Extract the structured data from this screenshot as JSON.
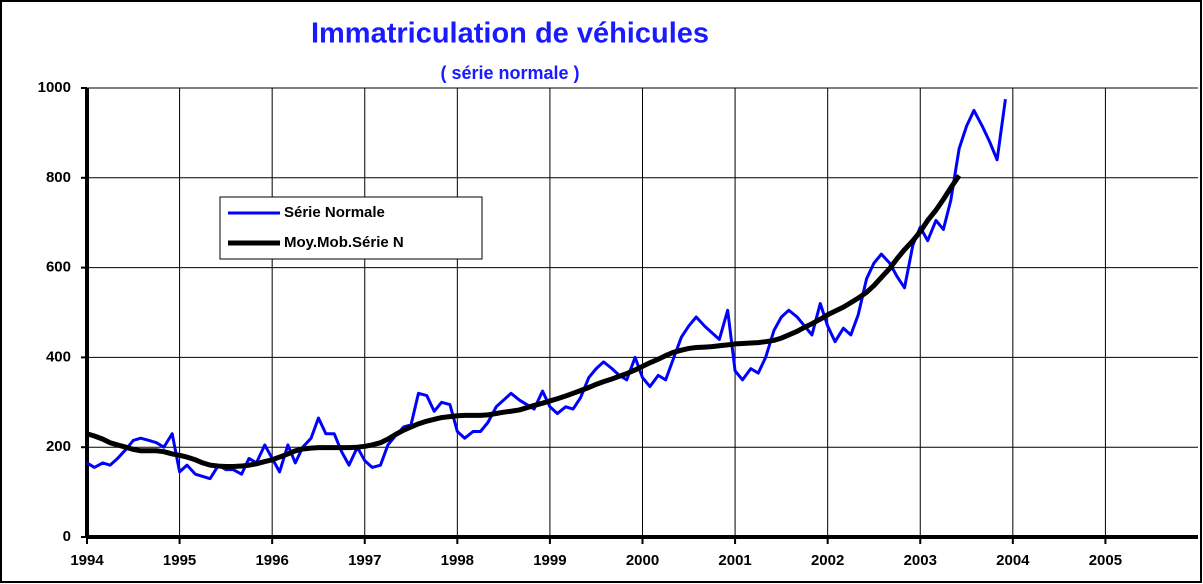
{
  "chart_data": {
    "type": "line",
    "title": "Immatriculation de véhicules",
    "subtitle": "( série normale )",
    "x": [
      1994.0,
      1994.08,
      1994.17,
      1994.25,
      1994.33,
      1994.42,
      1994.5,
      1994.58,
      1994.67,
      1994.75,
      1994.83,
      1994.92,
      1995.0,
      1995.08,
      1995.17,
      1995.25,
      1995.33,
      1995.42,
      1995.5,
      1995.58,
      1995.67,
      1995.75,
      1995.83,
      1995.92,
      1996.0,
      1996.08,
      1996.17,
      1996.25,
      1996.33,
      1996.42,
      1996.5,
      1996.58,
      1996.67,
      1996.75,
      1996.83,
      1996.92,
      1997.0,
      1997.08,
      1997.17,
      1997.25,
      1997.33,
      1997.42,
      1997.5,
      1997.58,
      1997.67,
      1997.75,
      1997.83,
      1997.92,
      1998.0,
      1998.08,
      1998.17,
      1998.25,
      1998.33,
      1998.42,
      1998.5,
      1998.58,
      1998.67,
      1998.75,
      1998.83,
      1998.92,
      1999.0,
      1999.08,
      1999.17,
      1999.25,
      1999.33,
      1999.42,
      1999.5,
      1999.58,
      1999.67,
      1999.75,
      1999.83,
      1999.92,
      2000.0,
      2000.08,
      2000.17,
      2000.25,
      2000.33,
      2000.42,
      2000.5,
      2000.58,
      2000.67,
      2000.75,
      2000.83,
      2000.92,
      2001.0,
      2001.08,
      2001.17,
      2001.25,
      2001.33,
      2001.42,
      2001.5,
      2001.58,
      2001.67,
      2001.75,
      2001.83,
      2001.92,
      2002.0,
      2002.08,
      2002.17,
      2002.25,
      2002.33,
      2002.42,
      2002.5,
      2002.58,
      2002.67,
      2002.75,
      2002.83,
      2002.92,
      2003.0,
      2003.08,
      2003.17,
      2003.25,
      2003.33,
      2003.42,
      2003.5,
      2003.58,
      2003.67,
      2003.75,
      2003.83,
      2003.92
    ],
    "series": [
      {
        "name": "Série Normale",
        "color": "#0000ff",
        "width": 3,
        "values": [
          165,
          155,
          165,
          160,
          175,
          195,
          215,
          220,
          215,
          210,
          200,
          230,
          145,
          160,
          140,
          135,
          130,
          160,
          150,
          150,
          140,
          175,
          165,
          205,
          175,
          145,
          205,
          165,
          200,
          220,
          265,
          230,
          230,
          190,
          160,
          200,
          170,
          155,
          160,
          205,
          225,
          245,
          250,
          320,
          315,
          280,
          300,
          295,
          235,
          220,
          235,
          235,
          255,
          290,
          305,
          320,
          305,
          295,
          285,
          325,
          290,
          275,
          290,
          285,
          310,
          355,
          375,
          390,
          375,
          360,
          350,
          400,
          355,
          335,
          360,
          350,
          395,
          445,
          470,
          490,
          470,
          455,
          440,
          505,
          370,
          350,
          375,
          365,
          400,
          460,
          490,
          505,
          490,
          470,
          450,
          520,
          470,
          435,
          465,
          450,
          495,
          575,
          610,
          630,
          610,
          580,
          555,
          650,
          690,
          660,
          705,
          685,
          750,
          865,
          915,
          950,
          915,
          880,
          840,
          975
        ]
      },
      {
        "name": "Moy.Mob.Série N",
        "color": "#000000",
        "width": 5,
        "values": [
          230,
          225,
          218,
          210,
          205,
          200,
          195,
          192,
          192,
          192,
          190,
          185,
          182,
          178,
          172,
          165,
          160,
          158,
          157,
          157,
          158,
          160,
          163,
          168,
          172,
          178,
          185,
          192,
          196,
          198,
          199,
          199,
          199,
          199,
          199,
          200,
          202,
          205,
          210,
          218,
          228,
          238,
          245,
          252,
          258,
          262,
          266,
          268,
          270,
          271,
          271,
          271,
          272,
          275,
          278,
          280,
          283,
          288,
          293,
          298,
          303,
          308,
          314,
          320,
          326,
          333,
          340,
          346,
          352,
          358,
          364,
          372,
          380,
          388,
          396,
          404,
          411,
          416,
          420,
          422,
          423,
          424,
          426,
          428,
          430,
          431,
          432,
          433,
          435,
          438,
          443,
          450,
          458,
          467,
          475,
          485,
          495,
          503,
          512,
          522,
          532,
          545,
          560,
          578,
          598,
          620,
          640,
          660,
          680,
          705,
          728,
          752,
          778,
          805,
          null,
          null,
          null,
          null,
          null,
          null
        ]
      }
    ],
    "xlim": [
      1994,
      2006
    ],
    "xticks": [
      1994,
      1995,
      1996,
      1997,
      1998,
      1999,
      2000,
      2001,
      2002,
      2003,
      2004,
      2005
    ],
    "ylim": [
      0,
      1000
    ],
    "yticks": [
      0,
      200,
      400,
      600,
      800,
      1000
    ],
    "grid": true,
    "legend": "upper left"
  }
}
